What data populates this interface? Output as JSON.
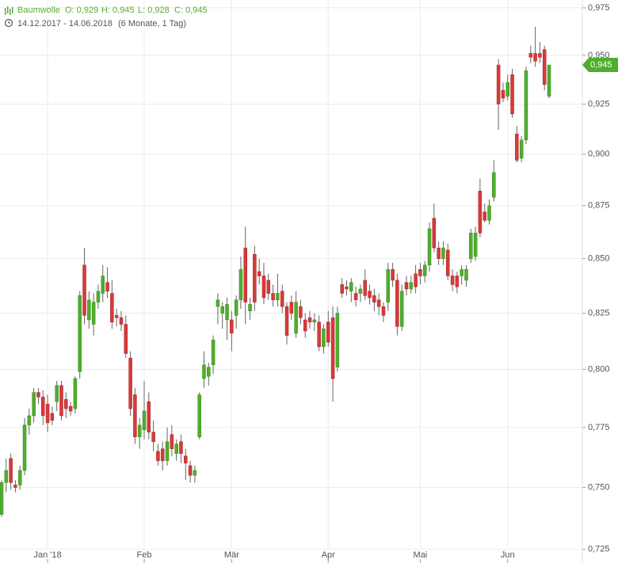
{
  "chart_data": {
    "type": "candlestick",
    "title": "Baumwolle",
    "summary": [
      "O: 0,929",
      "H: 0,945",
      "L: 0,928",
      "C: 0,945"
    ],
    "date_range": "14.12.2017 - 14.06.2018",
    "period": "(6 Monate, 1 Tag)",
    "log": true,
    "grid": true,
    "up_color": "#4fae2c",
    "down_color": "#d63a3a",
    "ylim": [
      0.7218,
      0.9792
    ],
    "yticks": [
      {
        "value": 0.725,
        "label": "0,725"
      },
      {
        "value": 0.75,
        "label": "0,750"
      },
      {
        "value": 0.775,
        "label": "0,775"
      },
      {
        "value": 0.8,
        "label": "0,800"
      },
      {
        "value": 0.825,
        "label": "0,825"
      },
      {
        "value": 0.85,
        "label": "0,850"
      },
      {
        "value": 0.875,
        "label": "0,875"
      },
      {
        "value": 0.9,
        "label": "0,900"
      },
      {
        "value": 0.925,
        "label": "0,925"
      },
      {
        "value": 0.95,
        "label": "0,950"
      },
      {
        "value": 0.975,
        "label": "0,975"
      }
    ],
    "last_price": {
      "value": 0.945,
      "label": "0,945"
    },
    "categories": [
      null,
      null,
      null,
      null,
      null,
      null,
      null,
      null,
      null,
      null,
      "Jan '18",
      null,
      null,
      null,
      null,
      null,
      null,
      null,
      null,
      null,
      null,
      null,
      null,
      null,
      null,
      null,
      null,
      null,
      null,
      null,
      null,
      "Feb",
      null,
      null,
      null,
      null,
      null,
      null,
      null,
      null,
      null,
      null,
      null,
      null,
      null,
      null,
      null,
      null,
      null,
      null,
      "Mär",
      null,
      null,
      null,
      null,
      null,
      null,
      null,
      null,
      null,
      null,
      null,
      null,
      null,
      null,
      null,
      null,
      null,
      null,
      null,
      null,
      "Apr",
      null,
      null,
      null,
      null,
      null,
      null,
      null,
      null,
      null,
      null,
      null,
      null,
      null,
      null,
      null,
      null,
      null,
      null,
      null,
      "Mai",
      null,
      null,
      null,
      null,
      null,
      null,
      null,
      null,
      null,
      null,
      null,
      null,
      null,
      null,
      null,
      null,
      null,
      null,
      "Jun",
      null,
      null,
      null,
      null,
      null,
      null,
      null,
      null,
      null
    ],
    "open": [
      0.739,
      0.752,
      0.762,
      0.751,
      0.751,
      0.757,
      0.776,
      0.78,
      0.79,
      0.788,
      0.785,
      0.781,
      0.786,
      0.793,
      0.787,
      0.784,
      0.783,
      0.799,
      0.847,
      0.822,
      0.82,
      0.83,
      0.834,
      0.839,
      0.834,
      0.824,
      0.823,
      0.82,
      0.805,
      0.789,
      0.771,
      0.774,
      0.786,
      0.773,
      0.765,
      0.766,
      0.761,
      0.772,
      0.764,
      0.769,
      0.763,
      0.759,
      0.755,
      0.771,
      0.796,
      0.797,
      0.802,
      0.828,
      0.825,
      0.822,
      0.822,
      0.824,
      0.831,
      0.855,
      0.826,
      0.852,
      0.844,
      0.842,
      0.84,
      0.834,
      0.831,
      0.835,
      0.828,
      0.83,
      0.816,
      0.828,
      0.822,
      0.823,
      0.821,
      0.821,
      0.81,
      0.821,
      0.823,
      0.801,
      0.838,
      0.837,
      0.835,
      0.834,
      0.834,
      0.84,
      0.835,
      0.833,
      0.831,
      0.828,
      0.83,
      0.845,
      0.84,
      0.819,
      0.839,
      0.836,
      0.843,
      0.845,
      0.842,
      0.847,
      0.869,
      0.855,
      0.85,
      0.854,
      0.842,
      0.842,
      0.842,
      0.84,
      0.85,
      0.851,
      0.882,
      0.872,
      0.868,
      0.879,
      0.945,
      0.932,
      0.929,
      0.94,
      0.91,
      0.898,
      0.907,
      0.951,
      0.951,
      0.951,
      0.953,
      0.929
    ],
    "high": [
      0.753,
      0.762,
      0.764,
      0.753,
      0.759,
      0.779,
      0.783,
      0.792,
      0.792,
      0.791,
      0.789,
      0.784,
      0.795,
      0.795,
      0.79,
      0.786,
      0.797,
      0.835,
      0.855,
      0.835,
      0.834,
      0.838,
      0.847,
      0.846,
      0.84,
      0.827,
      0.826,
      0.824,
      0.808,
      0.792,
      0.779,
      0.795,
      0.79,
      0.778,
      0.768,
      0.769,
      0.775,
      0.776,
      0.77,
      0.772,
      0.766,
      0.761,
      0.759,
      0.79,
      0.808,
      0.803,
      0.815,
      0.834,
      0.83,
      0.832,
      0.826,
      0.833,
      0.851,
      0.865,
      0.832,
      0.856,
      0.85,
      0.848,
      0.843,
      0.838,
      0.843,
      0.838,
      0.83,
      0.833,
      0.835,
      0.831,
      0.825,
      0.826,
      0.825,
      0.824,
      0.82,
      0.826,
      0.828,
      0.828,
      0.841,
      0.84,
      0.841,
      0.837,
      0.838,
      0.845,
      0.838,
      0.836,
      0.834,
      0.83,
      0.848,
      0.848,
      0.843,
      0.838,
      0.842,
      0.842,
      0.847,
      0.848,
      0.849,
      0.867,
      0.876,
      0.858,
      0.858,
      0.857,
      0.845,
      0.844,
      0.847,
      0.847,
      0.864,
      0.865,
      0.888,
      0.876,
      0.878,
      0.897,
      0.948,
      0.936,
      0.94,
      0.943,
      0.914,
      0.909,
      0.944,
      0.955,
      0.965,
      0.957,
      0.955,
      0.945
    ],
    "low": [
      0.738,
      0.748,
      0.749,
      0.748,
      0.749,
      0.755,
      0.772,
      0.777,
      0.785,
      0.776,
      0.773,
      0.776,
      0.782,
      0.778,
      0.779,
      0.78,
      0.781,
      0.796,
      0.82,
      0.818,
      0.815,
      0.827,
      0.83,
      0.832,
      0.818,
      0.819,
      0.817,
      0.805,
      0.78,
      0.768,
      0.766,
      0.77,
      0.77,
      0.765,
      0.759,
      0.757,
      0.759,
      0.763,
      0.761,
      0.76,
      0.753,
      0.752,
      0.752,
      0.77,
      0.792,
      0.793,
      0.798,
      0.82,
      0.818,
      0.813,
      0.808,
      0.818,
      0.827,
      0.82,
      0.822,
      0.826,
      0.838,
      0.829,
      0.831,
      0.828,
      0.828,
      0.825,
      0.811,
      0.822,
      0.814,
      0.82,
      0.814,
      0.818,
      0.817,
      0.808,
      0.807,
      0.81,
      0.786,
      0.799,
      0.832,
      0.833,
      0.83,
      0.828,
      0.83,
      0.831,
      0.829,
      0.826,
      0.824,
      0.821,
      0.826,
      0.837,
      0.815,
      0.817,
      0.833,
      0.834,
      0.834,
      0.838,
      0.839,
      0.844,
      0.853,
      0.847,
      0.847,
      0.84,
      0.835,
      0.834,
      0.838,
      0.837,
      0.848,
      0.849,
      0.86,
      0.867,
      0.866,
      0.877,
      0.912,
      0.926,
      0.927,
      0.918,
      0.896,
      0.896,
      0.905,
      0.946,
      0.944,
      0.946,
      0.932,
      0.928
    ],
    "close": [
      0.752,
      0.757,
      0.752,
      0.75,
      0.757,
      0.776,
      0.78,
      0.79,
      0.788,
      0.78,
      0.777,
      0.778,
      0.793,
      0.78,
      0.783,
      0.782,
      0.796,
      0.833,
      0.824,
      0.831,
      0.83,
      0.835,
      0.842,
      0.835,
      0.821,
      0.823,
      0.82,
      0.807,
      0.783,
      0.771,
      0.776,
      0.782,
      0.773,
      0.769,
      0.761,
      0.761,
      0.769,
      0.766,
      0.768,
      0.764,
      0.76,
      0.755,
      0.757,
      0.789,
      0.802,
      0.801,
      0.813,
      0.831,
      0.828,
      0.829,
      0.816,
      0.831,
      0.845,
      0.83,
      0.829,
      0.83,
      0.842,
      0.832,
      0.834,
      0.831,
      0.834,
      0.828,
      0.815,
      0.825,
      0.83,
      0.823,
      0.817,
      0.821,
      0.822,
      0.81,
      0.818,
      0.812,
      0.796,
      0.825,
      0.834,
      0.836,
      0.839,
      0.831,
      0.836,
      0.833,
      0.832,
      0.83,
      0.828,
      0.824,
      0.845,
      0.84,
      0.819,
      0.835,
      0.836,
      0.839,
      0.837,
      0.842,
      0.847,
      0.864,
      0.855,
      0.85,
      0.855,
      0.842,
      0.838,
      0.837,
      0.845,
      0.845,
      0.862,
      0.862,
      0.862,
      0.868,
      0.875,
      0.891,
      0.925,
      0.928,
      0.936,
      0.92,
      0.897,
      0.907,
      0.942,
      0.949,
      0.947,
      0.949,
      0.935,
      0.945
    ]
  }
}
